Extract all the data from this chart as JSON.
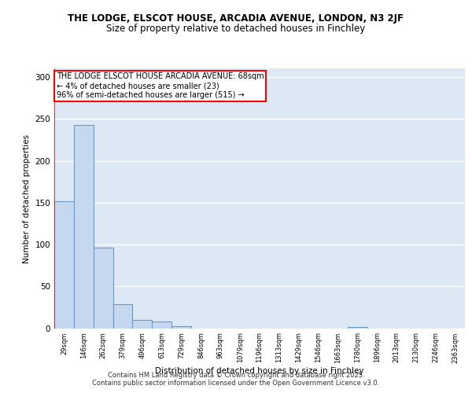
{
  "title1": "THE LODGE, ELSCOT HOUSE, ARCADIA AVENUE, LONDON, N3 2JF",
  "title2": "Size of property relative to detached houses in Finchley",
  "xlabel": "Distribution of detached houses by size in Finchley",
  "ylabel": "Number of detached properties",
  "categories": [
    "29sqm",
    "146sqm",
    "262sqm",
    "379sqm",
    "496sqm",
    "613sqm",
    "729sqm",
    "846sqm",
    "963sqm",
    "1079sqm",
    "1196sqm",
    "1313sqm",
    "1429sqm",
    "1546sqm",
    "1663sqm",
    "1780sqm",
    "1896sqm",
    "2013sqm",
    "2130sqm",
    "2246sqm",
    "2363sqm"
  ],
  "values": [
    152,
    243,
    96,
    29,
    10,
    8,
    2,
    0,
    0,
    0,
    0,
    0,
    0,
    0,
    0,
    1,
    0,
    0,
    0,
    0,
    0
  ],
  "bar_color": "#c5d8f0",
  "bar_edge_color": "#6699cc",
  "annotation_text": "THE LODGE ELSCOT HOUSE ARCADIA AVENUE: 68sqm\n← 4% of detached houses are smaller (23)\n96% of semi-detached houses are larger (515) →",
  "redline_x": 0.5,
  "ylim": [
    0,
    310
  ],
  "yticks": [
    0,
    50,
    100,
    150,
    200,
    250,
    300
  ],
  "footer": "Contains HM Land Registry data © Crown copyright and database right 2025.\nContains public sector information licensed under the Open Government Licence v3.0.",
  "background_color": "#dde8f5",
  "grid_color": "#ffffff"
}
